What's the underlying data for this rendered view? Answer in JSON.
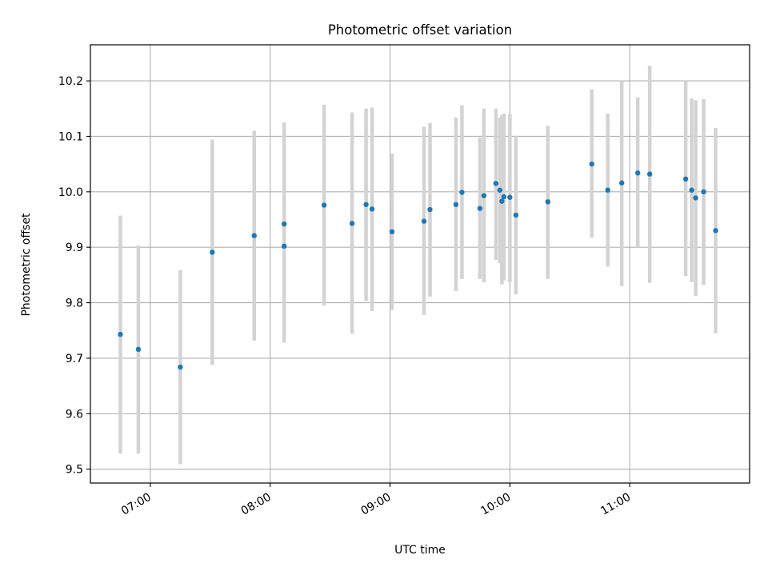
{
  "chart_data": {
    "type": "scatter",
    "title": "Photometric offset variation",
    "xlabel": "UTC time",
    "ylabel": "Photometric offset",
    "x_axis_format": "HH:MM",
    "xlim": [
      "06:30",
      "12:00"
    ],
    "ylim": [
      9.475,
      10.265
    ],
    "grid": true,
    "x_ticks": [
      "07:00",
      "08:00",
      "09:00",
      "10:00",
      "11:00"
    ],
    "y_ticks": [
      9.5,
      9.6,
      9.7,
      9.8,
      9.9,
      10.0,
      10.1,
      10.2
    ],
    "marker_color": "#1f77b4",
    "errorbar_color": "#d3d3d3",
    "points": [
      {
        "x": "06:45",
        "y": 9.743,
        "ylow": 9.528,
        "yhigh": 9.957
      },
      {
        "x": "06:54",
        "y": 9.716,
        "ylow": 9.528,
        "yhigh": 9.903
      },
      {
        "x": "07:15",
        "y": 9.684,
        "ylow": 9.509,
        "yhigh": 9.859
      },
      {
        "x": "07:31",
        "y": 9.891,
        "ylow": 9.688,
        "yhigh": 10.094
      },
      {
        "x": "07:52",
        "y": 9.921,
        "ylow": 9.732,
        "yhigh": 10.11
      },
      {
        "x": "08:07",
        "y": 9.902,
        "ylow": 9.728,
        "yhigh": 10.077
      },
      {
        "x": "08:07",
        "y": 9.942,
        "ylow": 9.76,
        "yhigh": 10.125
      },
      {
        "x": "08:27",
        "y": 9.976,
        "ylow": 9.795,
        "yhigh": 10.157
      },
      {
        "x": "08:41",
        "y": 9.943,
        "ylow": 9.744,
        "yhigh": 10.143
      },
      {
        "x": "08:48",
        "y": 9.977,
        "ylow": 9.803,
        "yhigh": 10.15
      },
      {
        "x": "08:51",
        "y": 9.969,
        "ylow": 9.785,
        "yhigh": 10.152
      },
      {
        "x": "09:01",
        "y": 9.928,
        "ylow": 9.787,
        "yhigh": 10.069
      },
      {
        "x": "09:17",
        "y": 9.947,
        "ylow": 9.778,
        "yhigh": 10.117
      },
      {
        "x": "09:20",
        "y": 9.968,
        "ylow": 9.811,
        "yhigh": 10.124
      },
      {
        "x": "09:33",
        "y": 9.977,
        "ylow": 9.821,
        "yhigh": 10.134
      },
      {
        "x": "09:36",
        "y": 9.999,
        "ylow": 9.843,
        "yhigh": 10.156
      },
      {
        "x": "09:45",
        "y": 9.97,
        "ylow": 9.843,
        "yhigh": 10.098
      },
      {
        "x": "09:47",
        "y": 9.993,
        "ylow": 9.837,
        "yhigh": 10.15
      },
      {
        "x": "09:53",
        "y": 10.015,
        "ylow": 9.877,
        "yhigh": 10.15
      },
      {
        "x": "09:55",
        "y": 10.003,
        "ylow": 9.871,
        "yhigh": 10.134
      },
      {
        "x": "09:56",
        "y": 9.983,
        "ylow": 9.833,
        "yhigh": 10.138
      },
      {
        "x": "09:57",
        "y": 9.991,
        "ylow": 9.84,
        "yhigh": 10.141
      },
      {
        "x": "10:00",
        "y": 9.99,
        "ylow": 9.837,
        "yhigh": 10.14
      },
      {
        "x": "10:03",
        "y": 9.958,
        "ylow": 9.815,
        "yhigh": 10.101
      },
      {
        "x": "10:19",
        "y": 9.982,
        "ylow": 9.843,
        "yhigh": 10.119
      },
      {
        "x": "10:41",
        "y": 10.05,
        "ylow": 9.917,
        "yhigh": 10.185
      },
      {
        "x": "10:49",
        "y": 10.003,
        "ylow": 9.865,
        "yhigh": 10.141
      },
      {
        "x": "10:56",
        "y": 10.016,
        "ylow": 9.83,
        "yhigh": 10.2
      },
      {
        "x": "11:04",
        "y": 10.034,
        "ylow": 9.9,
        "yhigh": 10.17
      },
      {
        "x": "11:10",
        "y": 10.032,
        "ylow": 9.836,
        "yhigh": 10.227
      },
      {
        "x": "11:28",
        "y": 10.023,
        "ylow": 9.848,
        "yhigh": 10.2
      },
      {
        "x": "11:31",
        "y": 10.003,
        "ylow": 9.837,
        "yhigh": 10.168
      },
      {
        "x": "11:33",
        "y": 9.989,
        "ylow": 9.812,
        "yhigh": 10.165
      },
      {
        "x": "11:37",
        "y": 10.0,
        "ylow": 9.832,
        "yhigh": 10.167
      },
      {
        "x": "11:43",
        "y": 9.93,
        "ylow": 9.745,
        "yhigh": 10.115
      }
    ]
  }
}
